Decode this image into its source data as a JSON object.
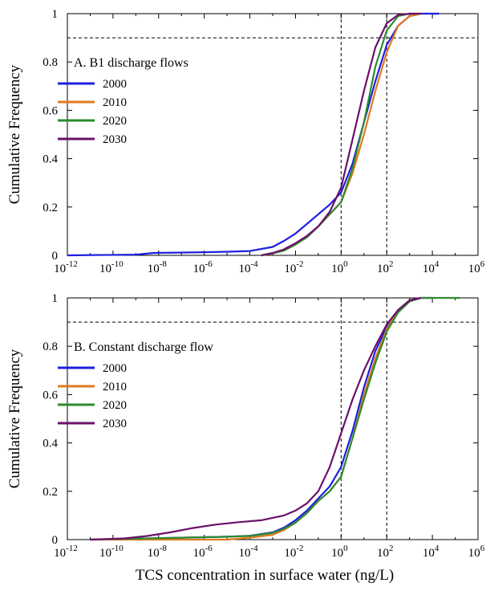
{
  "figure": {
    "xlabel": "TCS concentration in surface water (ng/L)"
  },
  "chart_data": [
    {
      "type": "line",
      "panel_title": "A. B1 discharge flows",
      "ylabel": "Cumulative Frequency",
      "x_scale": "log10",
      "xlim": [
        -12,
        6
      ],
      "ylim": [
        0,
        1
      ],
      "x_ticks": [
        {
          "base": "10",
          "exp": "-12"
        },
        {
          "base": "10",
          "exp": "-10"
        },
        {
          "base": "10",
          "exp": "-8"
        },
        {
          "base": "10",
          "exp": "-6"
        },
        {
          "base": "10",
          "exp": "-4"
        },
        {
          "base": "10",
          "exp": "-2"
        },
        {
          "base": "10",
          "exp": "0"
        },
        {
          "base": "10",
          "exp": "2"
        },
        {
          "base": "10",
          "exp": "4"
        },
        {
          "base": "10",
          "exp": "6"
        }
      ],
      "y_ticks": [
        "0",
        "0.2",
        "0.4",
        "0.6",
        "0.8",
        "1"
      ],
      "y_tick_values": [
        0,
        0.2,
        0.4,
        0.6,
        0.8,
        1
      ],
      "reference_lines": {
        "vertical_log10_x": [
          0,
          2
        ],
        "horizontal_y": [
          0.9
        ]
      },
      "legend_position": "upper-left",
      "series": [
        {
          "name": "2000",
          "color": "#1f1fe0",
          "points": [
            [
              -12,
              0.0
            ],
            [
              -9,
              0.003
            ],
            [
              -8.2,
              0.01
            ],
            [
              -6,
              0.013
            ],
            [
              -5,
              0.015
            ],
            [
              -4,
              0.018
            ],
            [
              -3,
              0.035
            ],
            [
              -2.5,
              0.06
            ],
            [
              -2,
              0.09
            ],
            [
              -1.5,
              0.13
            ],
            [
              -1,
              0.17
            ],
            [
              -0.5,
              0.21
            ],
            [
              0,
              0.26
            ],
            [
              0.5,
              0.38
            ],
            [
              1,
              0.55
            ],
            [
              1.5,
              0.72
            ],
            [
              2,
              0.87
            ],
            [
              2.5,
              0.95
            ],
            [
              3,
              0.99
            ],
            [
              3.5,
              1.0
            ],
            [
              4.3,
              1.0
            ]
          ]
        },
        {
          "name": "2010",
          "color": "#e07a1f",
          "points": [
            [
              -3.5,
              0.0
            ],
            [
              -3,
              0.008
            ],
            [
              -2.5,
              0.02
            ],
            [
              -2,
              0.045
            ],
            [
              -1.5,
              0.075
            ],
            [
              -1,
              0.12
            ],
            [
              -0.5,
              0.17
            ],
            [
              0,
              0.22
            ],
            [
              0.5,
              0.34
            ],
            [
              1,
              0.5
            ],
            [
              1.5,
              0.68
            ],
            [
              2,
              0.84
            ],
            [
              2.5,
              0.95
            ],
            [
              3,
              0.99
            ],
            [
              3.5,
              1.0
            ]
          ]
        },
        {
          "name": "2020",
          "color": "#2e8b2e",
          "points": [
            [
              -3.5,
              0.0
            ],
            [
              -3,
              0.008
            ],
            [
              -2.5,
              0.02
            ],
            [
              -2,
              0.045
            ],
            [
              -1.5,
              0.075
            ],
            [
              -1,
              0.12
            ],
            [
              -0.5,
              0.17
            ],
            [
              0,
              0.22
            ],
            [
              0.5,
              0.36
            ],
            [
              1,
              0.55
            ],
            [
              1.5,
              0.78
            ],
            [
              2,
              0.93
            ],
            [
              2.5,
              0.99
            ],
            [
              3,
              1.0
            ],
            [
              3.5,
              1.0
            ]
          ]
        },
        {
          "name": "2030",
          "color": "#6b106b",
          "points": [
            [
              -3.5,
              0.0
            ],
            [
              -3,
              0.01
            ],
            [
              -2.5,
              0.025
            ],
            [
              -2,
              0.05
            ],
            [
              -1.5,
              0.08
            ],
            [
              -1,
              0.12
            ],
            [
              -0.5,
              0.18
            ],
            [
              0,
              0.28
            ],
            [
              0.5,
              0.48
            ],
            [
              1,
              0.68
            ],
            [
              1.5,
              0.86
            ],
            [
              2,
              0.96
            ],
            [
              2.5,
              0.995
            ],
            [
              3,
              1.0
            ],
            [
              3.5,
              1.0
            ]
          ]
        }
      ]
    },
    {
      "type": "line",
      "panel_title": "B. Constant discharge flow",
      "ylabel": "Cumulative Frequency",
      "x_scale": "log10",
      "xlim": [
        -12,
        6
      ],
      "ylim": [
        0,
        1
      ],
      "x_ticks": [
        {
          "base": "10",
          "exp": "-12"
        },
        {
          "base": "10",
          "exp": "-10"
        },
        {
          "base": "10",
          "exp": "-8"
        },
        {
          "base": "10",
          "exp": "-6"
        },
        {
          "base": "10",
          "exp": "-4"
        },
        {
          "base": "10",
          "exp": "-2"
        },
        {
          "base": "10",
          "exp": "0"
        },
        {
          "base": "10",
          "exp": "2"
        },
        {
          "base": "10",
          "exp": "4"
        },
        {
          "base": "10",
          "exp": "6"
        }
      ],
      "y_ticks": [
        "0",
        "0.2",
        "0.4",
        "0.6",
        "0.8",
        "1"
      ],
      "y_tick_values": [
        0,
        0.2,
        0.4,
        0.6,
        0.8,
        1
      ],
      "reference_lines": {
        "vertical_log10_x": [
          0,
          2
        ],
        "horizontal_y": [
          0.9
        ]
      },
      "legend_position": "upper-left",
      "series": [
        {
          "name": "2000",
          "color": "#1f1fe0",
          "points": [
            [
              -11,
              0.0
            ],
            [
              -9,
              0.004
            ],
            [
              -7,
              0.008
            ],
            [
              -5,
              0.012
            ],
            [
              -4,
              0.016
            ],
            [
              -3,
              0.03
            ],
            [
              -2.5,
              0.05
            ],
            [
              -2,
              0.08
            ],
            [
              -1.5,
              0.12
            ],
            [
              -1,
              0.17
            ],
            [
              -0.5,
              0.22
            ],
            [
              0,
              0.3
            ],
            [
              0.5,
              0.45
            ],
            [
              1,
              0.63
            ],
            [
              1.5,
              0.78
            ],
            [
              2,
              0.88
            ],
            [
              2.5,
              0.95
            ],
            [
              3,
              0.99
            ],
            [
              3.5,
              1.0
            ],
            [
              4,
              1.0
            ]
          ]
        },
        {
          "name": "2010",
          "color": "#e07a1f",
          "points": [
            [
              -11,
              0.0
            ],
            [
              -5,
              0.0
            ],
            [
              -4,
              0.008
            ],
            [
              -3,
              0.02
            ],
            [
              -2.5,
              0.04
            ],
            [
              -2,
              0.07
            ],
            [
              -1.5,
              0.11
            ],
            [
              -1,
              0.16
            ],
            [
              -0.5,
              0.2
            ],
            [
              0,
              0.26
            ],
            [
              0.5,
              0.42
            ],
            [
              1,
              0.6
            ],
            [
              1.5,
              0.75
            ],
            [
              2,
              0.87
            ],
            [
              2.5,
              0.95
            ],
            [
              3,
              0.99
            ],
            [
              3.5,
              1.0
            ]
          ]
        },
        {
          "name": "2020",
          "color": "#2e8b2e",
          "points": [
            [
              -11,
              0.0
            ],
            [
              -9,
              0.004
            ],
            [
              -7,
              0.008
            ],
            [
              -5,
              0.012
            ],
            [
              -4,
              0.015
            ],
            [
              -3,
              0.028
            ],
            [
              -2.5,
              0.045
            ],
            [
              -2,
              0.07
            ],
            [
              -1.5,
              0.11
            ],
            [
              -1,
              0.16
            ],
            [
              -0.5,
              0.2
            ],
            [
              0,
              0.26
            ],
            [
              0.5,
              0.42
            ],
            [
              1,
              0.58
            ],
            [
              1.5,
              0.73
            ],
            [
              2,
              0.86
            ],
            [
              2.5,
              0.94
            ],
            [
              3,
              0.985
            ],
            [
              3.5,
              1.0
            ],
            [
              5.2,
              1.0
            ]
          ]
        },
        {
          "name": "2030",
          "color": "#6b106b",
          "points": [
            [
              -11,
              0.0
            ],
            [
              -9.5,
              0.005
            ],
            [
              -8.5,
              0.015
            ],
            [
              -7.5,
              0.03
            ],
            [
              -6.5,
              0.048
            ],
            [
              -5.5,
              0.062
            ],
            [
              -4.5,
              0.072
            ],
            [
              -3.5,
              0.08
            ],
            [
              -3,
              0.09
            ],
            [
              -2.5,
              0.1
            ],
            [
              -2,
              0.12
            ],
            [
              -1.5,
              0.15
            ],
            [
              -1,
              0.2
            ],
            [
              -0.5,
              0.3
            ],
            [
              0,
              0.44
            ],
            [
              0.5,
              0.58
            ],
            [
              1,
              0.7
            ],
            [
              1.5,
              0.8
            ],
            [
              2,
              0.89
            ],
            [
              2.5,
              0.95
            ],
            [
              3,
              0.99
            ],
            [
              3.5,
              1.0
            ]
          ]
        }
      ]
    }
  ]
}
